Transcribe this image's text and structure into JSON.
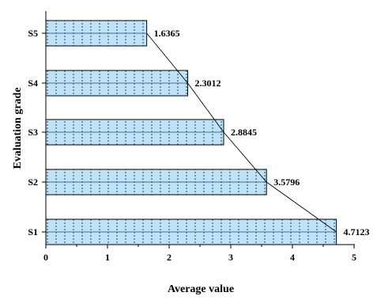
{
  "chart_data": {
    "type": "bar",
    "orientation": "horizontal",
    "categories": [
      "S1",
      "S2",
      "S3",
      "S4",
      "S5"
    ],
    "values": [
      4.7123,
      3.5796,
      2.8845,
      2.3012,
      1.6365
    ],
    "value_labels": [
      "4.7123",
      "3.5796",
      "2.8845",
      "2.3012",
      "1.6365"
    ],
    "xlabel": "Average value",
    "ylabel": "Evaluation grade",
    "xlim": [
      0,
      5
    ],
    "xticks": [
      "0",
      "1",
      "2",
      "3",
      "4",
      "5"
    ],
    "grid": false,
    "trend_line": true,
    "colors": {
      "bar_fill": "#bfe2f6",
      "bar_stroke": "#000000",
      "pattern_dot": "#6f93ad",
      "trend_line": "#000000"
    }
  }
}
